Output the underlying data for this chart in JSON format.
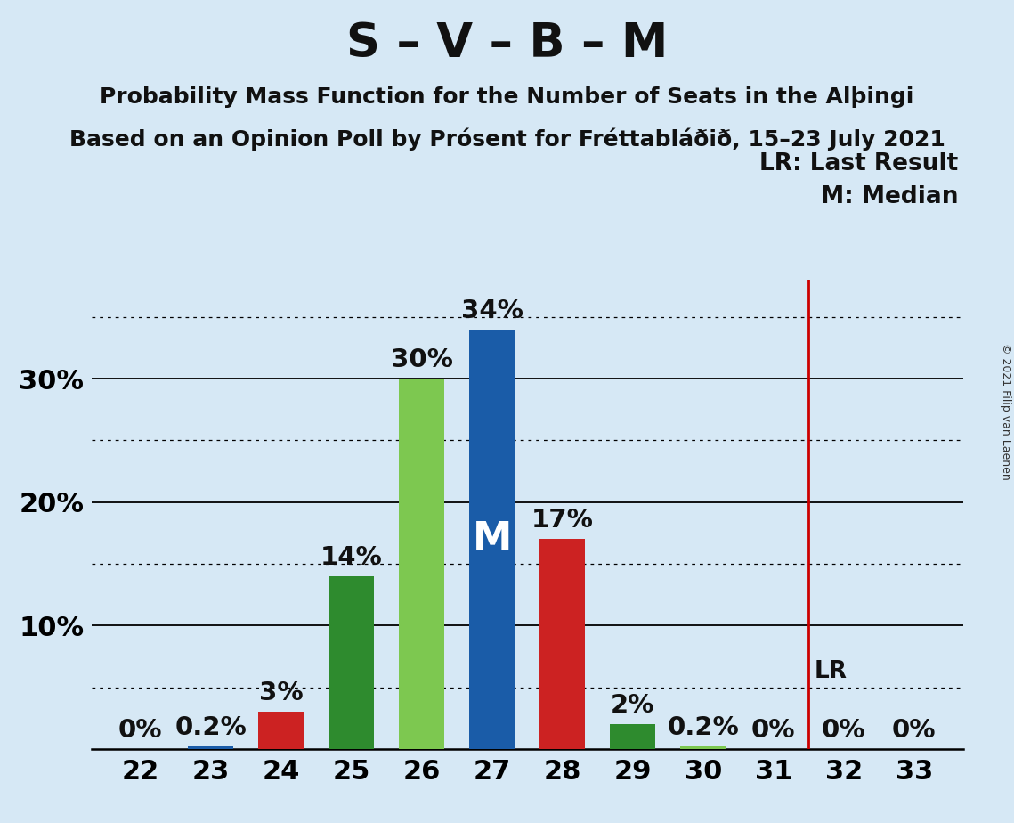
{
  "title": "S – V – B – M",
  "subtitle1": "Probability Mass Function for the Number of Seats in the Alþingi",
  "subtitle2": "Based on an Opinion Poll by Prósent for Fréttabláðið, 15–23 July 2021",
  "copyright": "© 2021 Filip van Laenen",
  "categories": [
    22,
    23,
    24,
    25,
    26,
    27,
    28,
    29,
    30,
    31,
    32,
    33
  ],
  "values": [
    0.0,
    0.2,
    3.0,
    14.0,
    30.0,
    34.0,
    17.0,
    2.0,
    0.2,
    0.0,
    0.0,
    0.0
  ],
  "labels": [
    "0%",
    "0.2%",
    "3%",
    "14%",
    "30%",
    "34%",
    "17%",
    "2%",
    "0.2%",
    "0%",
    "0%",
    "0%"
  ],
  "bar_colors": [
    "#1a5ca8",
    "#1a5ca8",
    "#cc2222",
    "#2e8b2e",
    "#7dc850",
    "#1a5ca8",
    "#cc2222",
    "#2e8b2e",
    "#7dc850",
    "#1a5ca8",
    "#cc2222",
    "#7dc850"
  ],
  "median_bar_index": 5,
  "median_label": "M",
  "last_result_xcat": 31.5,
  "lr_label": "LR: Last Result",
  "m_label": "M: Median",
  "background_color": "#d6e8f5",
  "ylim": [
    0,
    38
  ],
  "solid_yticks": [
    10,
    20,
    30
  ],
  "dotted_yticks": [
    5,
    15,
    25,
    35
  ],
  "title_fontsize": 38,
  "subtitle_fontsize": 18,
  "axis_label_fontsize": 22,
  "bar_label_fontsize": 21,
  "legend_fontsize": 19,
  "copyright_fontsize": 9,
  "bar_width": 0.65
}
